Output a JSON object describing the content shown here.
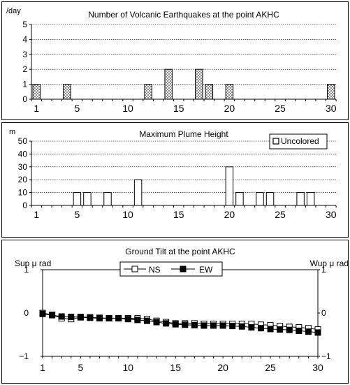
{
  "charts": [
    {
      "type": "bar",
      "title": "Number of Volcanic Earthquakes at the point AKHC",
      "ylabel": "/day",
      "ylim": [
        0,
        5
      ],
      "yticks": [
        "0",
        "1",
        "2",
        "3",
        "4",
        "5"
      ],
      "xlim": [
        1,
        31
      ],
      "xticks": [
        "1",
        "5",
        "10",
        "15",
        "20",
        "25",
        "30"
      ],
      "bar_fill": "#8a8a8a",
      "points": [
        {
          "day": 1,
          "value": 1
        },
        {
          "day": 4,
          "value": 1
        },
        {
          "day": 12,
          "value": 1
        },
        {
          "day": 14,
          "value": 2
        },
        {
          "day": 17,
          "value": 2
        },
        {
          "day": 18,
          "value": 1
        },
        {
          "day": 20,
          "value": 1
        },
        {
          "day": 30,
          "value": 1
        }
      ]
    },
    {
      "type": "bar",
      "title": "Maximum Plume Height",
      "ylabel": "m",
      "ylim": [
        0,
        50
      ],
      "yticks": [
        "0",
        "10",
        "20",
        "30",
        "40",
        "50"
      ],
      "xlim": [
        1,
        31
      ],
      "xticks": [
        "1",
        "5",
        "10",
        "15",
        "20",
        "25",
        "30"
      ],
      "legend": "Uncolored",
      "legend_position": "top-right",
      "points": [
        {
          "day": 5,
          "value": 10
        },
        {
          "day": 6,
          "value": 10
        },
        {
          "day": 8,
          "value": 10
        },
        {
          "day": 11,
          "value": 20
        },
        {
          "day": 20,
          "value": 30
        },
        {
          "day": 21,
          "value": 10
        },
        {
          "day": 23,
          "value": 10
        },
        {
          "day": 24,
          "value": 10
        },
        {
          "day": 27,
          "value": 10
        },
        {
          "day": 28,
          "value": 10
        }
      ]
    },
    {
      "type": "line",
      "title": "Ground Tilt at the point AKHC",
      "ylabel_left": "Sup μ rad",
      "ylabel_right": "Wup μ rad",
      "ylim": [
        -1,
        1
      ],
      "yticks_left": [
        "−1",
        "0",
        "1"
      ],
      "yticks_right": [
        "−1",
        "0",
        "1"
      ],
      "xlim": [
        1,
        30
      ],
      "xticks": [
        "1",
        "5",
        "10",
        "15",
        "20",
        "25",
        "30"
      ],
      "legend_position": "top-center",
      "series": [
        {
          "name": "NS",
          "marker": "open-square",
          "values": [
            0.0,
            -0.04,
            -0.12,
            -0.14,
            -0.1,
            -0.11,
            -0.12,
            -0.12,
            -0.12,
            -0.12,
            -0.12,
            -0.14,
            -0.18,
            -0.21,
            -0.24,
            -0.24,
            -0.24,
            -0.25,
            -0.25,
            -0.25,
            -0.25,
            -0.25,
            -0.25,
            -0.27,
            -0.28,
            -0.3,
            -0.32,
            -0.33,
            -0.35,
            -0.38
          ]
        },
        {
          "name": "EW",
          "marker": "filled-square",
          "values": [
            -0.02,
            -0.05,
            -0.08,
            -0.09,
            -0.09,
            -0.1,
            -0.11,
            -0.12,
            -0.12,
            -0.14,
            -0.16,
            -0.18,
            -0.21,
            -0.24,
            -0.26,
            -0.27,
            -0.28,
            -0.29,
            -0.29,
            -0.29,
            -0.3,
            -0.31,
            -0.33,
            -0.35,
            -0.37,
            -0.38,
            -0.39,
            -0.41,
            -0.43,
            -0.45
          ]
        }
      ]
    }
  ]
}
